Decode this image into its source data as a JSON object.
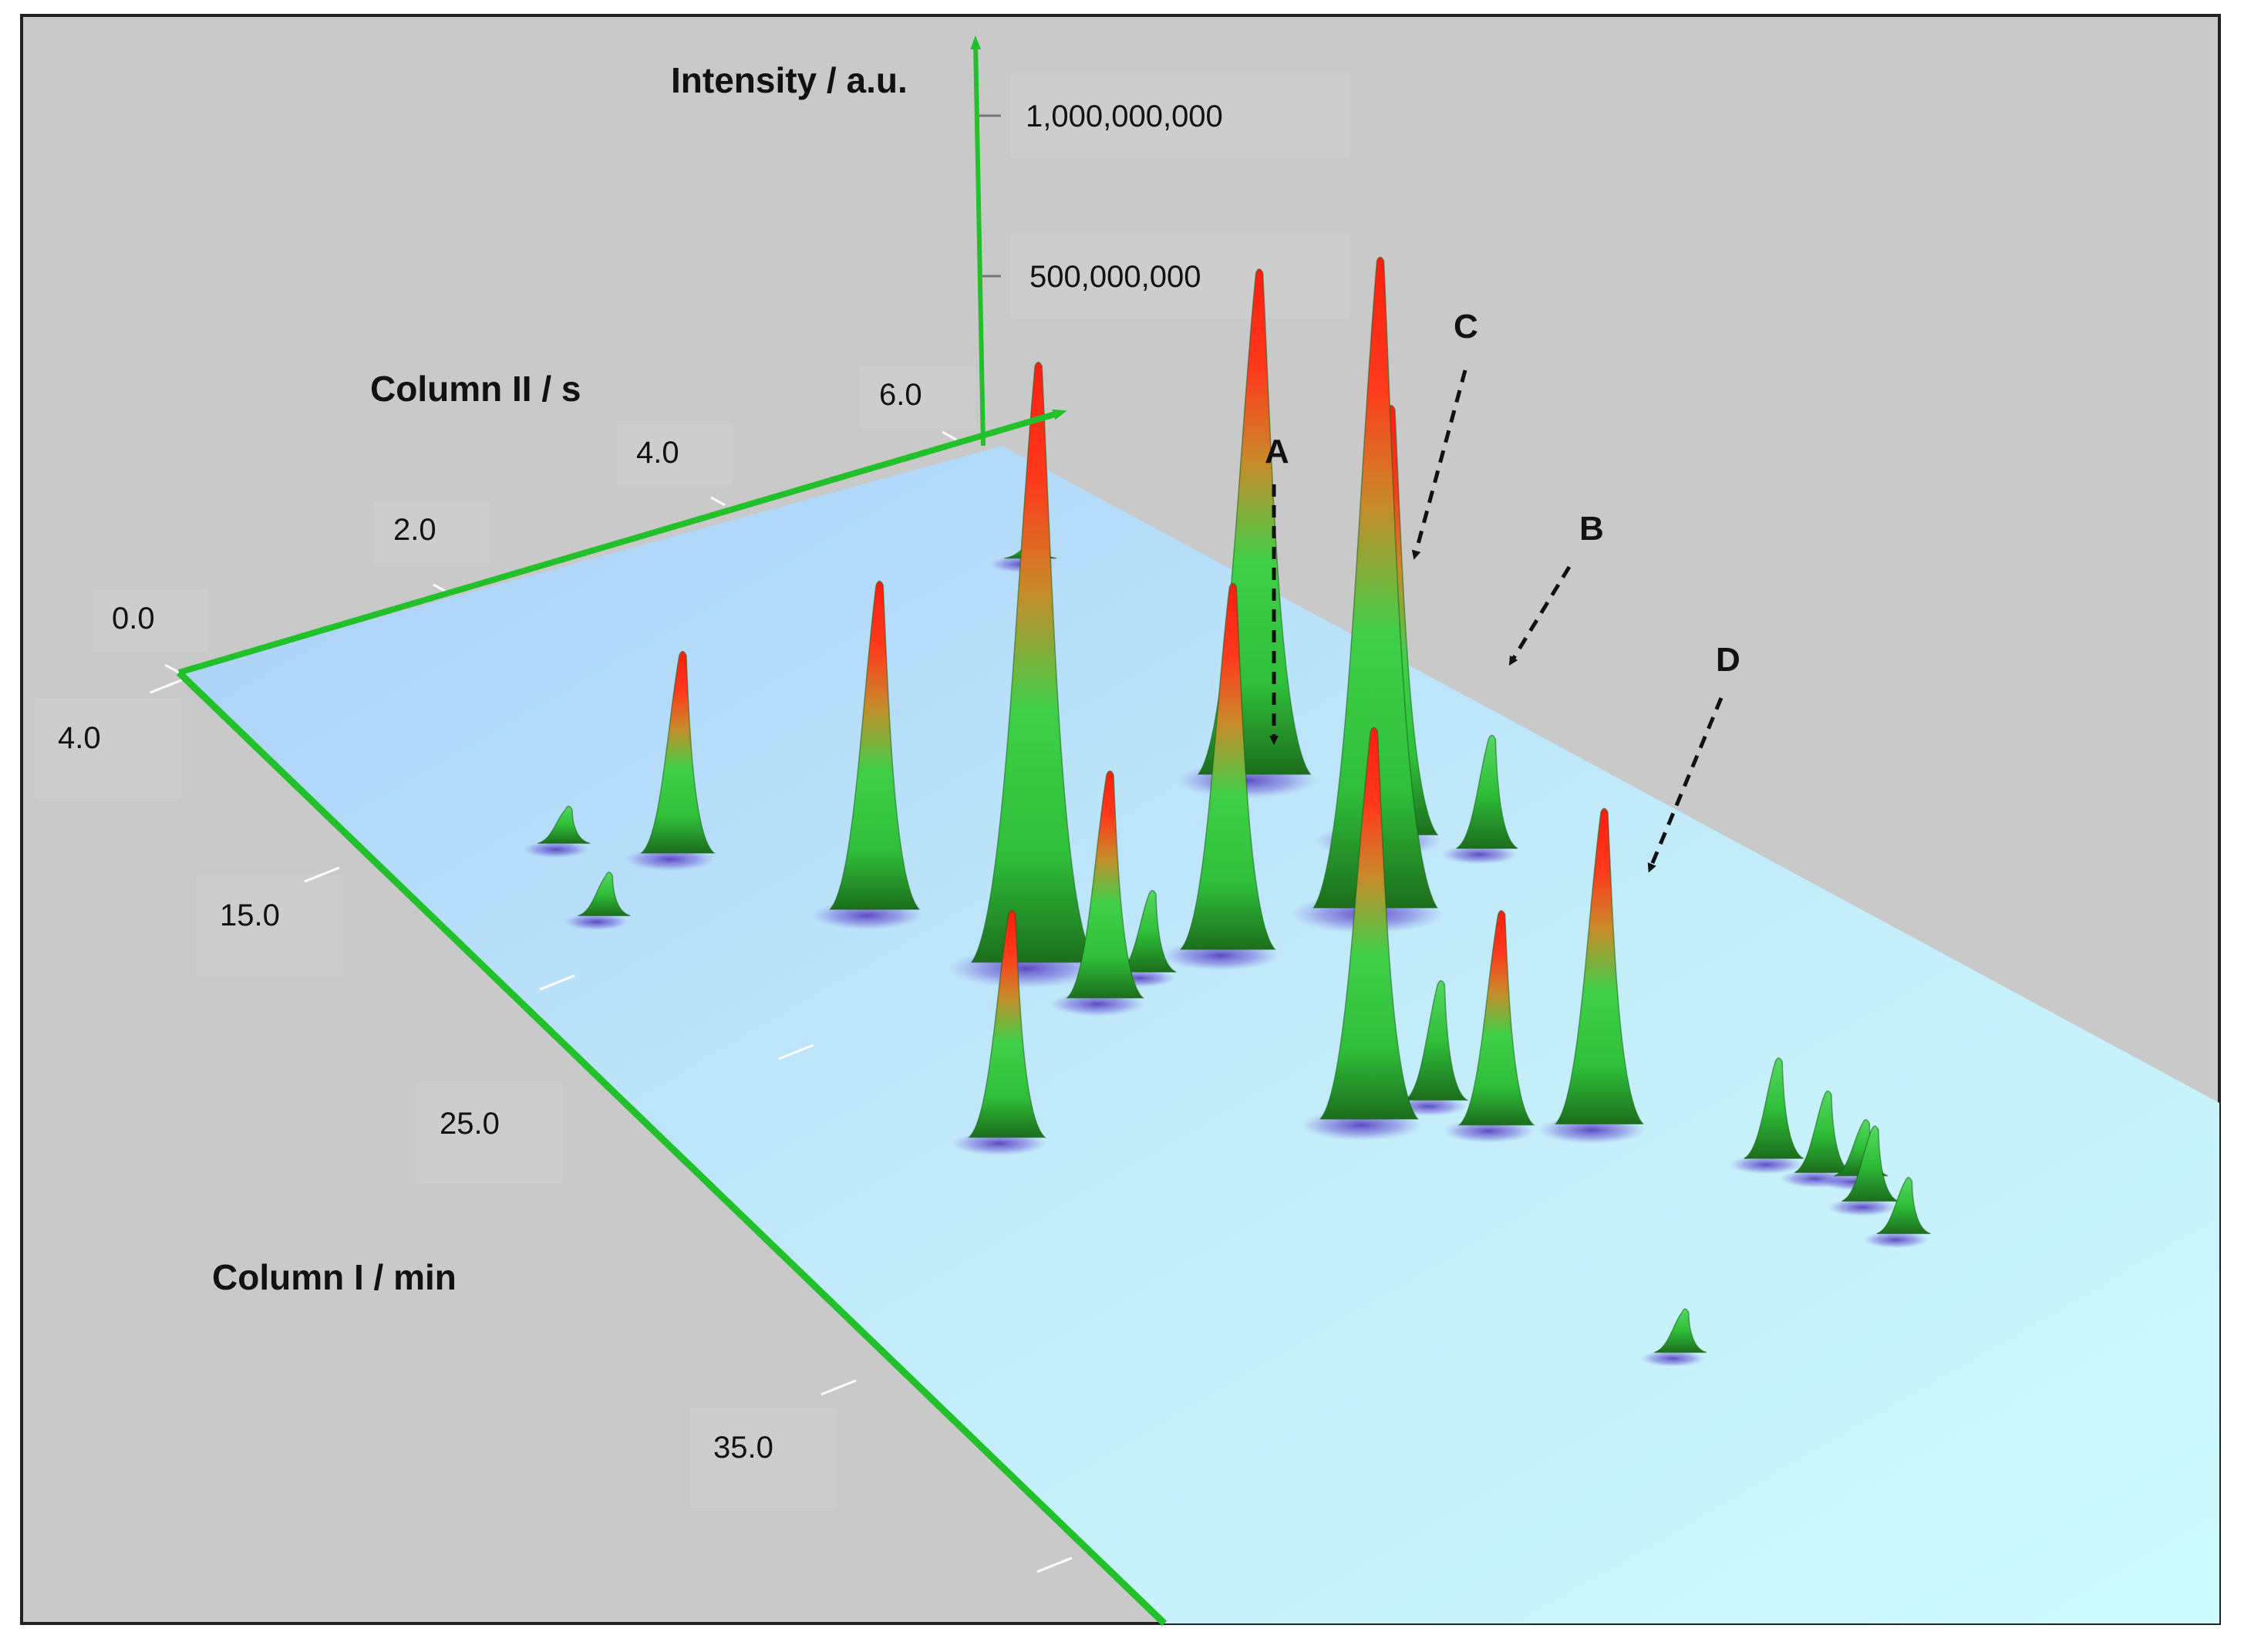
{
  "chart_data": {
    "type": "surface-3d",
    "axes": {
      "intensity": {
        "title": "Intensity / a.u.",
        "ticks": [
          500000000,
          1000000000
        ],
        "tick_labels": [
          "500,000,000",
          "1,000,000,000"
        ]
      },
      "column2": {
        "title": "Column II / s",
        "ticks": [
          0.0,
          2.0,
          4.0,
          6.0
        ],
        "tick_labels": [
          "0.0",
          "2.0",
          "4.0",
          "6.0"
        ]
      },
      "column1": {
        "title": "Column I / min",
        "ticks": [
          4.0,
          15.0,
          25.0,
          35.0
        ],
        "tick_labels": [
          "4.0",
          "15.0",
          "25.0",
          "35.0"
        ]
      }
    },
    "peaks": [
      {
        "t1": 19.0,
        "t2": 3.2,
        "intensity": 950000000
      },
      {
        "t1": 15.5,
        "t2": 2.6,
        "intensity": 520000000
      },
      {
        "t1": 11.5,
        "t2": 1.8,
        "intensity": 320000000
      },
      {
        "t1": 10.0,
        "t2": 1.2,
        "intensity": 60000000
      },
      {
        "t1": 13.0,
        "t2": 1.0,
        "intensity": 70000000
      },
      {
        "t1": 25.0,
        "t2": 2.0,
        "intensity": 360000000
      },
      {
        "t1": 21.0,
        "t2": 3.4,
        "intensity": 360000000
      },
      {
        "t1": 20.5,
        "t2": 3.8,
        "intensity": 130000000
      },
      {
        "t1": 20.5,
        "t2": 4.4,
        "intensity": 580000000,
        "label": "A"
      },
      {
        "t1": 14.5,
        "t2": 5.6,
        "intensity": 800000000
      },
      {
        "t1": 20.5,
        "t2": 5.5,
        "intensity": 1030000000,
        "label": "C"
      },
      {
        "t1": 18.0,
        "t2": 6.0,
        "intensity": 680000000,
        "label": "B"
      },
      {
        "t1": 19.5,
        "t2": 6.5,
        "intensity": 180000000,
        "label": "D"
      },
      {
        "t1": 28.0,
        "t2": 4.2,
        "intensity": 620000000
      },
      {
        "t1": 28.0,
        "t2": 4.7,
        "intensity": 190000000
      },
      {
        "t1": 29.5,
        "t2": 4.9,
        "intensity": 340000000
      },
      {
        "t1": 30.5,
        "t2": 5.5,
        "intensity": 500000000
      },
      {
        "t1": 33.5,
        "t2": 6.3,
        "intensity": 160000000
      },
      {
        "t1": 34.5,
        "t2": 6.5,
        "intensity": 130000000
      },
      {
        "t1": 35.0,
        "t2": 6.7,
        "intensity": 90000000
      },
      {
        "t1": 36.0,
        "t2": 6.6,
        "intensity": 120000000
      },
      {
        "t1": 37.5,
        "t2": 6.6,
        "intensity": 90000000
      },
      {
        "t1": 39.5,
        "t2": 4.6,
        "intensity": 70000000
      },
      {
        "t1": 4.5,
        "t2": 5.6,
        "intensity": 30000000
      }
    ],
    "annotations": [
      {
        "label": "A"
      },
      {
        "label": "B"
      },
      {
        "label": "C"
      },
      {
        "label": "D"
      }
    ],
    "colors": {
      "axis": "#22c02a",
      "background": "#c9c9c9",
      "plane_light": "#b9ddf9",
      "plane_cyan": "#c8f7fb",
      "peak_low": "#1e7a1e",
      "peak_mid": "#2fbf3a",
      "peak_high": "#ff1e10",
      "shadow": "#5b3fc4",
      "arrow": "#111111"
    }
  }
}
